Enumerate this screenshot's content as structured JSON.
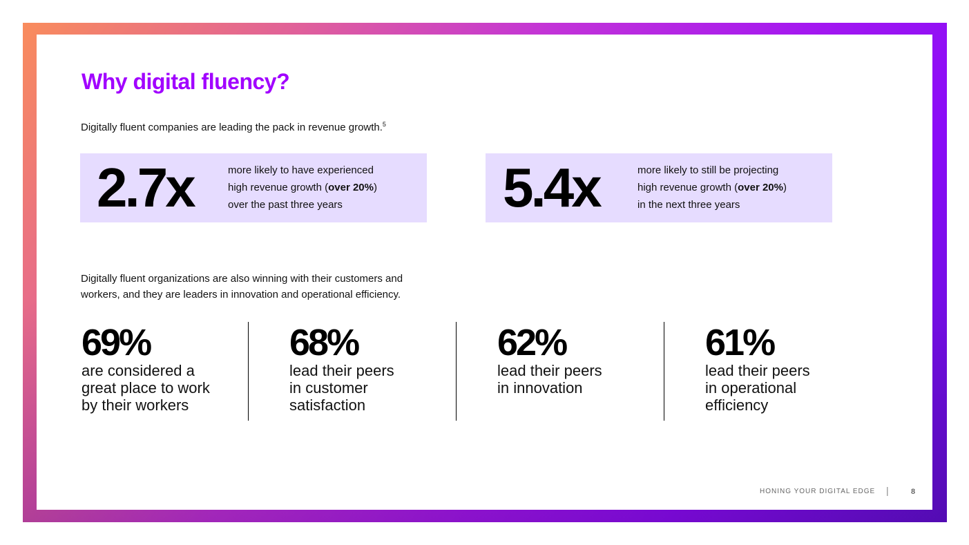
{
  "title": "Why digital fluency?",
  "intro1": {
    "text": "Digitally fluent companies are leading the pack in revenue growth.",
    "footnote": "5"
  },
  "stats": [
    {
      "value": "2.7x",
      "line1": "more likely to have experienced",
      "line2_pre": "high revenue growth (",
      "line2_bold": "over 20%",
      "line2_post": ")",
      "line3": "over the past three years"
    },
    {
      "value": "5.4x",
      "line1": "more likely to still be projecting",
      "line2_pre": "high revenue growth (",
      "line2_bold": "over 20%",
      "line2_post": ")",
      "line3": "in the next three years"
    }
  ],
  "intro2": {
    "line1": "Digitally fluent organizations are also winning with their customers and",
    "line2": "workers, and they are leaders in innovation and operational efficiency."
  },
  "metrics": [
    {
      "value": "69%",
      "desc": "are considered a\ngreat place to work\nby their workers"
    },
    {
      "value": "68%",
      "desc": "lead their peers\nin customer\nsatisfaction"
    },
    {
      "value": "62%",
      "desc": "lead their peers\nin innovation"
    },
    {
      "value": "61%",
      "desc": "lead their peers\nin operational\nefficiency"
    }
  ],
  "footer": {
    "label": "HONING YOUR DIGITAL EDGE",
    "separator": "|",
    "page": "8"
  }
}
